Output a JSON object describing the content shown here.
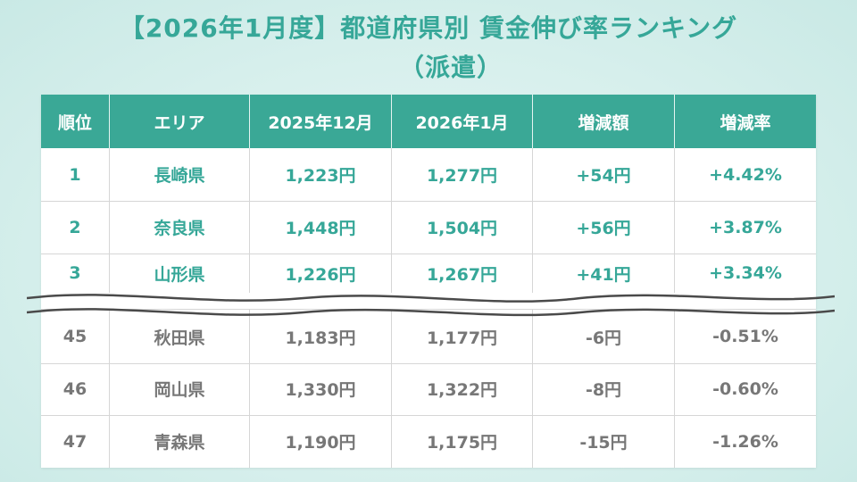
{
  "title": {
    "line1": "【2026年1月度】都道府県別 賃金伸び率ランキング",
    "line2": "（派遣）"
  },
  "table": {
    "headers": [
      "順位",
      "エリア",
      "2025年12月",
      "2026年1月",
      "増減額",
      "増減率"
    ],
    "top_rows": [
      [
        "1",
        "長崎県",
        "1,223円",
        "1,277円",
        "+54円",
        "+4.42%"
      ],
      [
        "2",
        "奈良県",
        "1,448円",
        "1,504円",
        "+56円",
        "+3.87%"
      ],
      [
        "3",
        "山形県",
        "1,226円",
        "1,267円",
        "+41円",
        "+3.34%"
      ]
    ],
    "bottom_rows": [
      [
        "45",
        "秋田県",
        "1,183円",
        "1,177円",
        "-6円",
        "-0.51%"
      ],
      [
        "46",
        "岡山県",
        "1,330円",
        "1,322円",
        "-8円",
        "-0.60%"
      ],
      [
        "47",
        "青森県",
        "1,190円",
        "1,175円",
        "-15円",
        "-1.26%"
      ]
    ]
  },
  "colors": {
    "accent": "#3aa896",
    "top_text": "#36a798",
    "bottom_text": "#777777",
    "background": "#d6efec"
  }
}
